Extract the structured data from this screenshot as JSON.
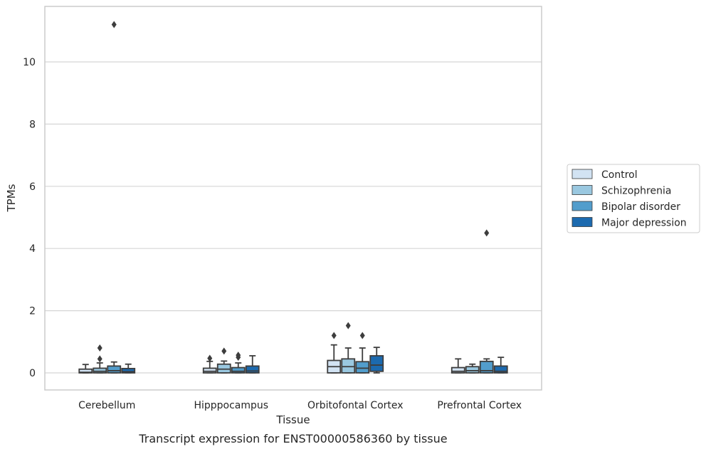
{
  "chart_data": {
    "type": "box",
    "title": "Transcript expression for ENST00000586360 by tissue",
    "xlabel": "Tissue",
    "ylabel": "TPMs",
    "ylim": [
      -0.55,
      11.75
    ],
    "yticks": [
      0,
      2,
      4,
      6,
      8,
      10
    ],
    "grid": true,
    "legend_position": "right",
    "categories": [
      "Cerebellum",
      "Hipppocampus",
      "Orbitofontal Cortex",
      "Prefrontal Cortex"
    ],
    "series": [
      {
        "name": "Control",
        "color": "#d2e3f3",
        "boxes": [
          {
            "whislo": 0,
            "q1": 0,
            "med": 0.02,
            "q3": 0.12,
            "whishi": 0.27,
            "fliers": []
          },
          {
            "whislo": 0,
            "q1": 0,
            "med": 0.05,
            "q3": 0.15,
            "whishi": 0.37,
            "fliers": [
              0.47
            ]
          },
          {
            "whislo": 0,
            "q1": 0,
            "med": 0.2,
            "q3": 0.4,
            "whishi": 0.9,
            "fliers": [
              1.2
            ]
          },
          {
            "whislo": 0,
            "q1": 0,
            "med": 0.05,
            "q3": 0.17,
            "whishi": 0.45,
            "fliers": []
          }
        ]
      },
      {
        "name": "Schizophrenia",
        "color": "#9ac8e0",
        "boxes": [
          {
            "whislo": 0,
            "q1": 0,
            "med": 0.05,
            "q3": 0.15,
            "whishi": 0.32,
            "fliers": [
              0.45,
              0.8
            ]
          },
          {
            "whislo": 0,
            "q1": 0,
            "med": 0.12,
            "q3": 0.28,
            "whishi": 0.38,
            "fliers": [
              0.7
            ]
          },
          {
            "whislo": 0,
            "q1": 0,
            "med": 0.2,
            "q3": 0.45,
            "whishi": 0.8,
            "fliers": [
              1.52
            ]
          },
          {
            "whislo": 0,
            "q1": 0,
            "med": 0.07,
            "q3": 0.2,
            "whishi": 0.28,
            "fliers": []
          }
        ]
      },
      {
        "name": "Bipolar disorder",
        "color": "#529dcc",
        "boxes": [
          {
            "whislo": 0,
            "q1": 0,
            "med": 0.07,
            "q3": 0.22,
            "whishi": 0.35,
            "fliers": [
              11.2
            ]
          },
          {
            "whislo": 0,
            "q1": 0,
            "med": 0.05,
            "q3": 0.17,
            "whishi": 0.32,
            "fliers": [
              0.5,
              0.57
            ]
          },
          {
            "whislo": 0,
            "q1": 0,
            "med": 0.15,
            "q3": 0.36,
            "whishi": 0.8,
            "fliers": [
              1.2
            ]
          },
          {
            "whislo": 0,
            "q1": 0,
            "med": 0.07,
            "q3": 0.37,
            "whishi": 0.45,
            "fliers": [
              4.5
            ]
          }
        ]
      },
      {
        "name": "Major depression",
        "color": "#1c6aaf",
        "boxes": [
          {
            "whislo": 0,
            "q1": 0,
            "med": 0.04,
            "q3": 0.14,
            "whishi": 0.28,
            "fliers": []
          },
          {
            "whislo": 0,
            "q1": 0,
            "med": 0.06,
            "q3": 0.22,
            "whishi": 0.55,
            "fliers": []
          },
          {
            "whislo": 0,
            "q1": 0.05,
            "med": 0.25,
            "q3": 0.55,
            "whishi": 0.82,
            "fliers": []
          },
          {
            "whislo": 0,
            "q1": 0,
            "med": 0.05,
            "q3": 0.22,
            "whishi": 0.5,
            "fliers": []
          }
        ]
      }
    ]
  }
}
